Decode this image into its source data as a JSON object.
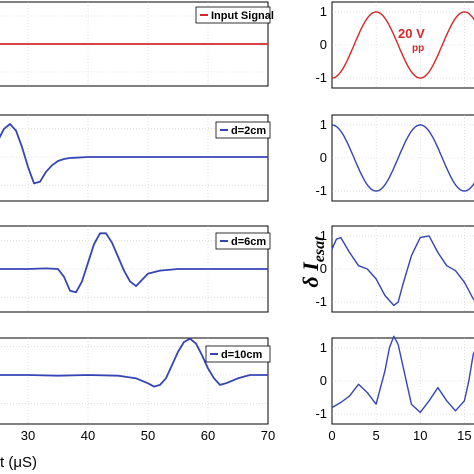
{
  "chart_data": [
    {
      "type": "line",
      "position": "left-1",
      "legend": "Input Signal",
      "color": "#d62728",
      "xlim": [
        25,
        70
      ],
      "x": [
        25,
        70
      ],
      "y": [
        0,
        0
      ]
    },
    {
      "type": "line",
      "position": "left-2",
      "legend": "d=2cm",
      "color": "#3545b5",
      "xlim": [
        25,
        70
      ],
      "x": [
        25,
        26,
        27,
        28,
        29,
        30,
        31,
        32,
        33,
        34,
        35,
        36,
        37,
        38,
        40,
        45,
        50,
        55,
        60,
        65,
        70
      ],
      "y": [
        0.5,
        0.85,
        1.0,
        0.8,
        0.3,
        -0.3,
        -0.8,
        -0.75,
        -0.45,
        -0.25,
        -0.12,
        -0.06,
        -0.03,
        -0.02,
        0.0,
        0.0,
        0.0,
        0.0,
        0.0,
        0.0,
        0.0
      ]
    },
    {
      "type": "line",
      "position": "left-3",
      "legend": "d=6cm",
      "color": "#3545b5",
      "xlim": [
        25,
        70
      ],
      "x": [
        25,
        30,
        33,
        35,
        36,
        37,
        38,
        39,
        40,
        41,
        42,
        43,
        44,
        45,
        46,
        47,
        48,
        49,
        50,
        52,
        55,
        60,
        65,
        70
      ],
      "y": [
        0.0,
        0.0,
        0.02,
        0.0,
        -0.25,
        -0.7,
        -0.75,
        -0.4,
        0.2,
        0.8,
        1.15,
        1.15,
        0.85,
        0.4,
        -0.05,
        -0.4,
        -0.55,
        -0.35,
        -0.15,
        -0.05,
        0.0,
        0.0,
        0.0,
        0.0
      ]
    },
    {
      "type": "line",
      "position": "left-4",
      "legend": "d=10cm",
      "color": "#3545b5",
      "xlim": [
        25,
        70
      ],
      "xticks": [
        30,
        40,
        50,
        60,
        70
      ],
      "x": [
        25,
        30,
        35,
        40,
        45,
        48,
        50,
        51,
        52,
        53,
        54,
        55,
        56,
        57,
        58,
        59,
        60,
        61,
        62,
        63,
        65,
        67,
        70
      ],
      "y": [
        0.0,
        0.0,
        -0.02,
        0.0,
        -0.02,
        -0.1,
        -0.25,
        -0.35,
        -0.3,
        -0.1,
        0.3,
        0.7,
        1.0,
        1.1,
        0.95,
        0.6,
        0.2,
        -0.1,
        -0.3,
        -0.25,
        -0.1,
        0.0,
        0.0
      ]
    },
    {
      "type": "line",
      "position": "right-1",
      "color": "#d62728",
      "annotation": "20 V",
      "annotation_sub": "pp",
      "xlim": [
        0,
        17
      ],
      "ylim": [
        -1.3,
        1.3
      ],
      "yticks": [
        -1,
        0,
        1
      ],
      "func": "-cos",
      "period": 10
    },
    {
      "type": "line",
      "position": "right-2",
      "color": "#3545b5",
      "xlim": [
        0,
        17
      ],
      "ylim": [
        -1.3,
        1.3
      ],
      "yticks": [
        -1,
        0,
        1
      ],
      "func": "cos",
      "period": 10
    },
    {
      "type": "line",
      "position": "right-3",
      "color": "#3545b5",
      "xlim": [
        0,
        17
      ],
      "ylim": [
        -1.3,
        1.3
      ],
      "yticks": [
        -1,
        0,
        1
      ],
      "x": [
        0,
        0.5,
        1,
        2,
        3,
        4,
        5,
        6,
        7,
        7.5,
        8,
        9,
        10,
        11,
        12,
        13,
        14,
        15,
        16,
        16.5,
        17
      ],
      "y": [
        0.6,
        0.9,
        0.95,
        0.5,
        0.1,
        0.0,
        -0.3,
        -0.8,
        -1.1,
        -1.0,
        -0.5,
        0.4,
        0.95,
        1.0,
        0.5,
        0.1,
        -0.05,
        -0.4,
        -0.9,
        -1.05,
        -0.7
      ]
    },
    {
      "type": "line",
      "position": "right-4",
      "color": "#3545b5",
      "xlim": [
        0,
        17
      ],
      "ylim": [
        -1.3,
        1.3
      ],
      "yticks": [
        -1,
        0,
        1
      ],
      "xticks": [
        0,
        5,
        10,
        15
      ],
      "x": [
        0,
        1,
        2,
        3,
        4,
        5,
        6,
        6.5,
        7,
        7.5,
        8,
        9,
        10,
        11,
        12,
        13,
        14,
        15,
        15.5,
        16,
        17
      ],
      "y": [
        -0.8,
        -0.65,
        -0.45,
        -0.1,
        -0.35,
        -0.7,
        0.3,
        1.0,
        1.35,
        1.1,
        0.5,
        -0.7,
        -0.95,
        -0.6,
        -0.2,
        -0.6,
        -0.9,
        -0.6,
        0.0,
        0.8,
        1.4
      ]
    }
  ],
  "xlabel_left": "t (μS)",
  "ylabel_right_main": "δ I",
  "ylabel_right_sub": "esat"
}
